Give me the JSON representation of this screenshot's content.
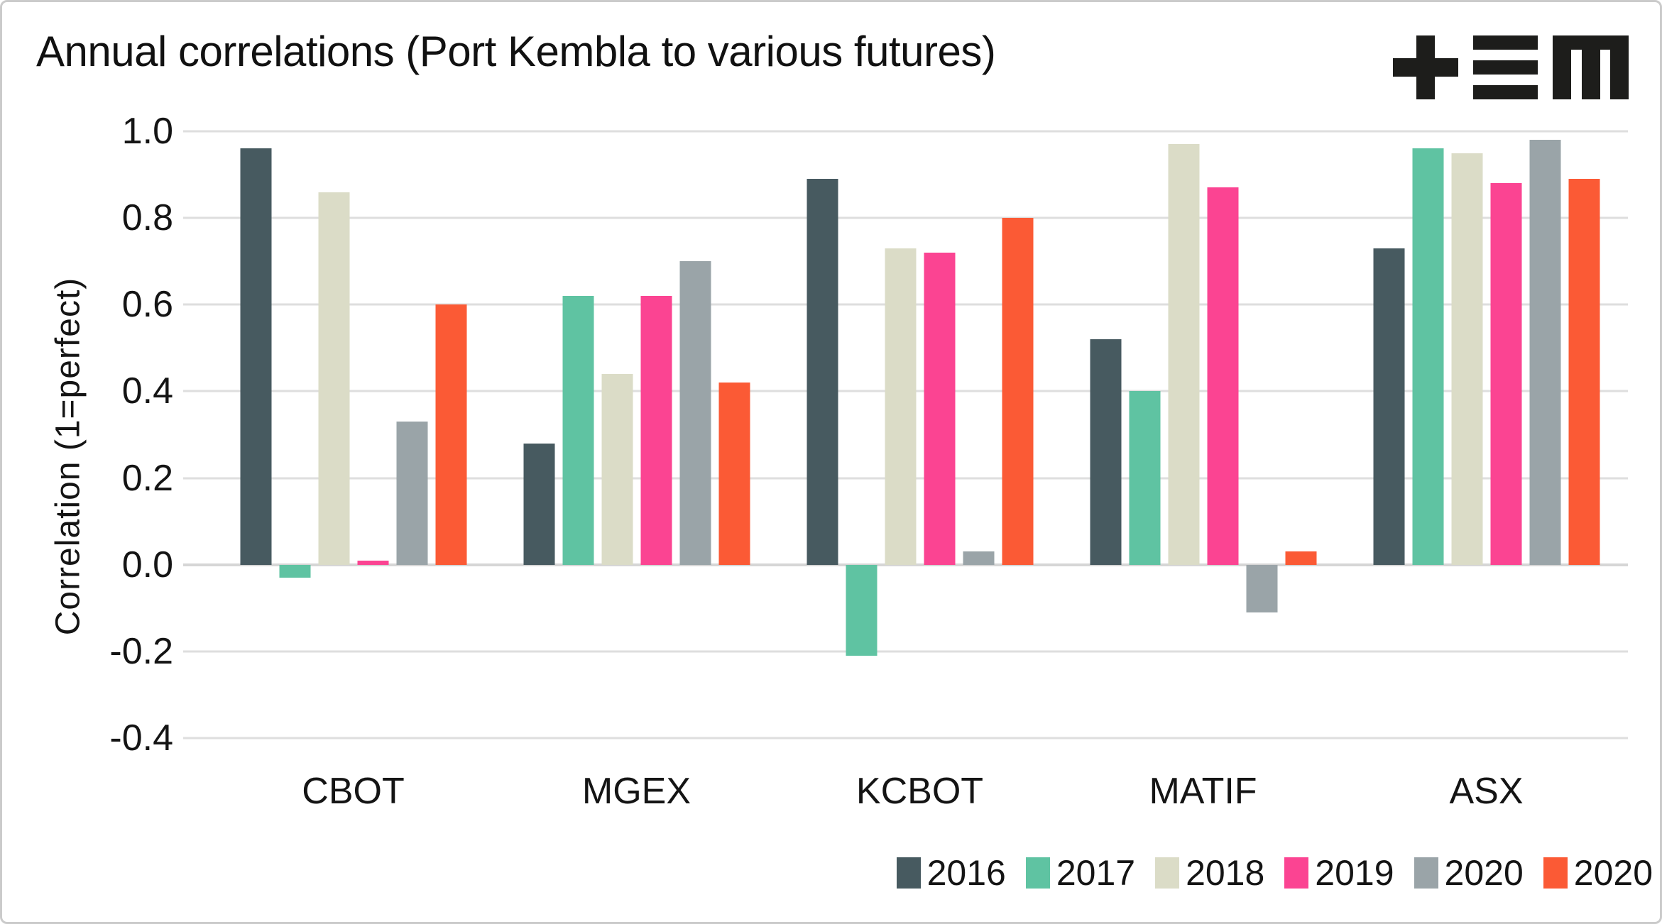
{
  "frame": {
    "background": "#ffffff",
    "border_color": "#cbcbcb"
  },
  "header": {
    "title": "Annual correlations (Port Kembla to various futures)",
    "logo": {
      "glyphs": [
        "plus-icon",
        "triple-bar-icon",
        "blocky-m-icon"
      ],
      "color": "#1d1d1b"
    }
  },
  "chart_data": {
    "type": "bar",
    "title": "Annual correlations (Port Kembla to various futures)",
    "xlabel": "",
    "ylabel": "Correlation (1=perfect)",
    "ylim": [
      -0.4,
      1.0
    ],
    "ytick_step": 0.2,
    "ytick_labels": [
      "1.0",
      "0.8",
      "0.6",
      "0.4",
      "0.2",
      "0.0",
      "-0.2",
      "-0.4"
    ],
    "grid": "horizontal",
    "gridline_color": "#dedede",
    "legend_position": "bottom-right",
    "categories": [
      "CBOT",
      "MGEX",
      "KCBOT",
      "MATIF",
      "ASX"
    ],
    "series": [
      {
        "name": "2016",
        "color": "#475a60",
        "values": [
          0.96,
          0.28,
          0.89,
          0.52,
          0.73
        ]
      },
      {
        "name": "2017",
        "color": "#5fc3a2",
        "values": [
          -0.03,
          0.62,
          -0.21,
          0.4,
          0.96
        ]
      },
      {
        "name": "2018",
        "color": "#dbdcc7",
        "values": [
          0.86,
          0.44,
          0.73,
          0.97,
          0.95
        ]
      },
      {
        "name": "2019",
        "color": "#fb4492",
        "values": [
          0.01,
          0.62,
          0.72,
          0.87,
          0.88
        ]
      },
      {
        "name": "2020",
        "color": "#9aa4a8",
        "values": [
          0.33,
          0.7,
          0.03,
          -0.11,
          0.98
        ]
      },
      {
        "name": "2020",
        "color": "#fb5a35",
        "values": [
          0.6,
          0.42,
          0.8,
          0.03,
          0.89
        ]
      }
    ]
  }
}
